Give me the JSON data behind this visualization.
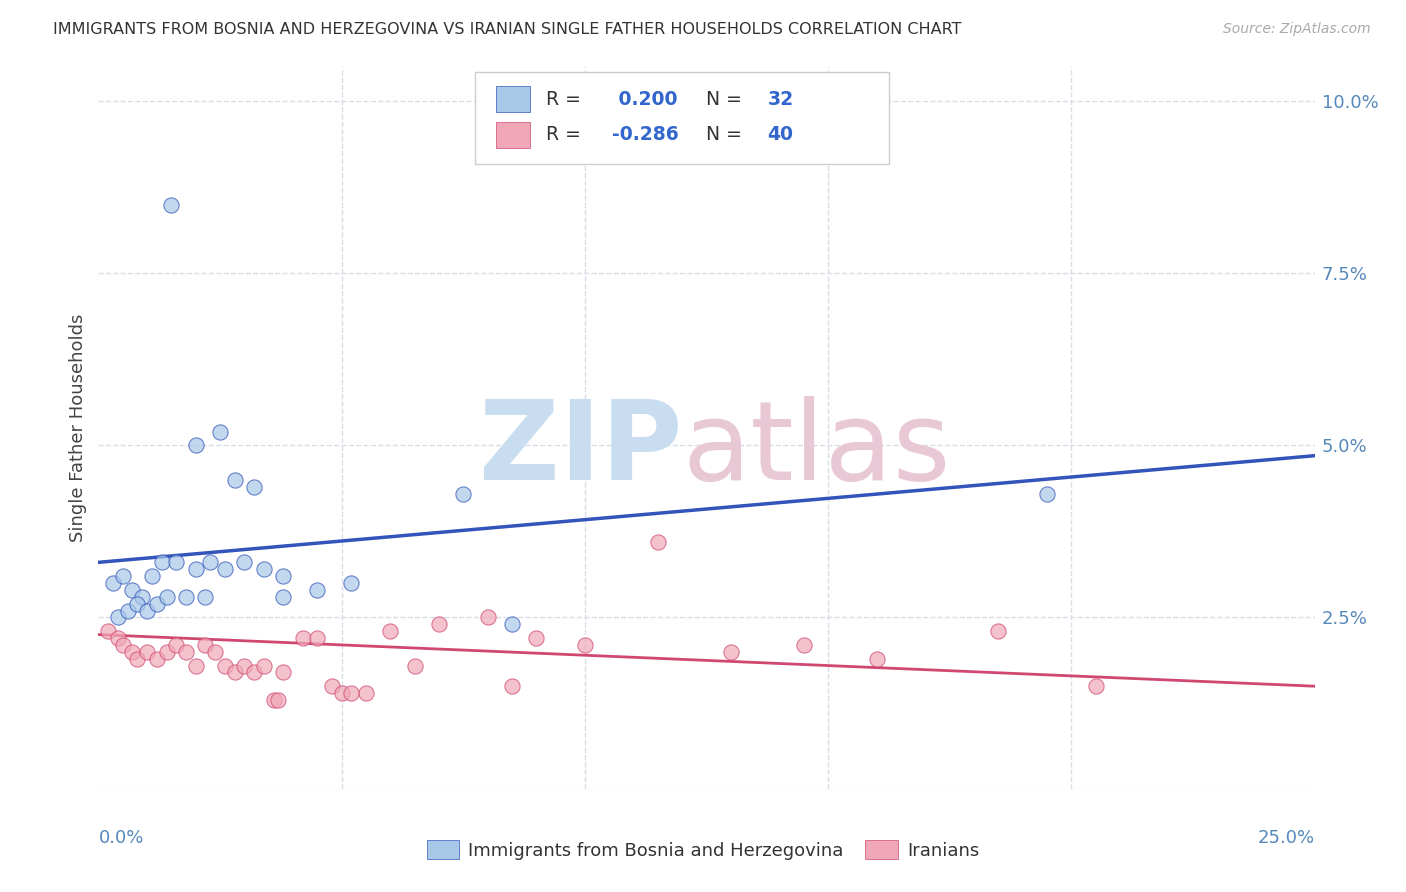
{
  "title": "IMMIGRANTS FROM BOSNIA AND HERZEGOVINA VS IRANIAN SINGLE FATHER HOUSEHOLDS CORRELATION CHART",
  "source": "Source: ZipAtlas.com",
  "ylabel": "Single Father Households",
  "blue_R": 0.2,
  "blue_N": 32,
  "pink_R": -0.286,
  "pink_N": 40,
  "blue_color": "#a8c8e8",
  "pink_color": "#f0a8b8",
  "blue_line_color": "#3355bb",
  "pink_line_color": "#d04870",
  "legend_color": "#3366cc",
  "title_color": "#333333",
  "axis_tick_color": "#5588bb",
  "grid_color": "#d8dde8",
  "background": "#ffffff",
  "xlim": [
    0.0,
    25.0
  ],
  "ylim": [
    0.0,
    10.5
  ],
  "blue_line_x0": 0.0,
  "blue_line_y0": 3.3,
  "blue_line_x1": 25.0,
  "blue_line_y1": 4.85,
  "pink_line_x0": 0.0,
  "pink_line_y0": 2.25,
  "pink_line_x1": 25.0,
  "pink_line_y1": 1.5,
  "blue_scatter_x": [
    1.5,
    2.5,
    2.0,
    2.8,
    3.2,
    3.8,
    0.3,
    0.5,
    0.7,
    0.9,
    1.1,
    1.3,
    1.6,
    2.0,
    2.3,
    2.6,
    3.0,
    3.4,
    3.8,
    4.5,
    5.2,
    0.4,
    0.6,
    0.8,
    1.0,
    1.2,
    1.4,
    1.8,
    2.2,
    7.5,
    19.5,
    8.5
  ],
  "blue_scatter_y": [
    8.5,
    5.2,
    5.0,
    4.5,
    4.4,
    3.1,
    3.0,
    3.1,
    2.9,
    2.8,
    3.1,
    3.3,
    3.3,
    3.2,
    3.3,
    3.2,
    3.3,
    3.2,
    2.8,
    2.9,
    3.0,
    2.5,
    2.6,
    2.7,
    2.6,
    2.7,
    2.8,
    2.8,
    2.8,
    4.3,
    4.3,
    2.4
  ],
  "pink_scatter_x": [
    0.2,
    0.4,
    0.5,
    0.7,
    0.8,
    1.0,
    1.2,
    1.4,
    1.6,
    1.8,
    2.0,
    2.2,
    2.4,
    2.6,
    2.8,
    3.0,
    3.2,
    3.4,
    3.8,
    4.2,
    4.5,
    4.8,
    5.0,
    5.5,
    6.0,
    6.5,
    7.0,
    8.0,
    9.0,
    10.0,
    11.5,
    13.0,
    14.5,
    16.0,
    18.5,
    20.5,
    3.6,
    3.7,
    5.2,
    8.5
  ],
  "pink_scatter_y": [
    2.3,
    2.2,
    2.1,
    2.0,
    1.9,
    2.0,
    1.9,
    2.0,
    2.1,
    2.0,
    1.8,
    2.1,
    2.0,
    1.8,
    1.7,
    1.8,
    1.7,
    1.8,
    1.7,
    2.2,
    2.2,
    1.5,
    1.4,
    1.4,
    2.3,
    1.8,
    2.4,
    2.5,
    2.2,
    2.1,
    3.6,
    2.0,
    2.1,
    1.9,
    2.3,
    1.5,
    1.3,
    1.3,
    1.4,
    1.5
  ]
}
